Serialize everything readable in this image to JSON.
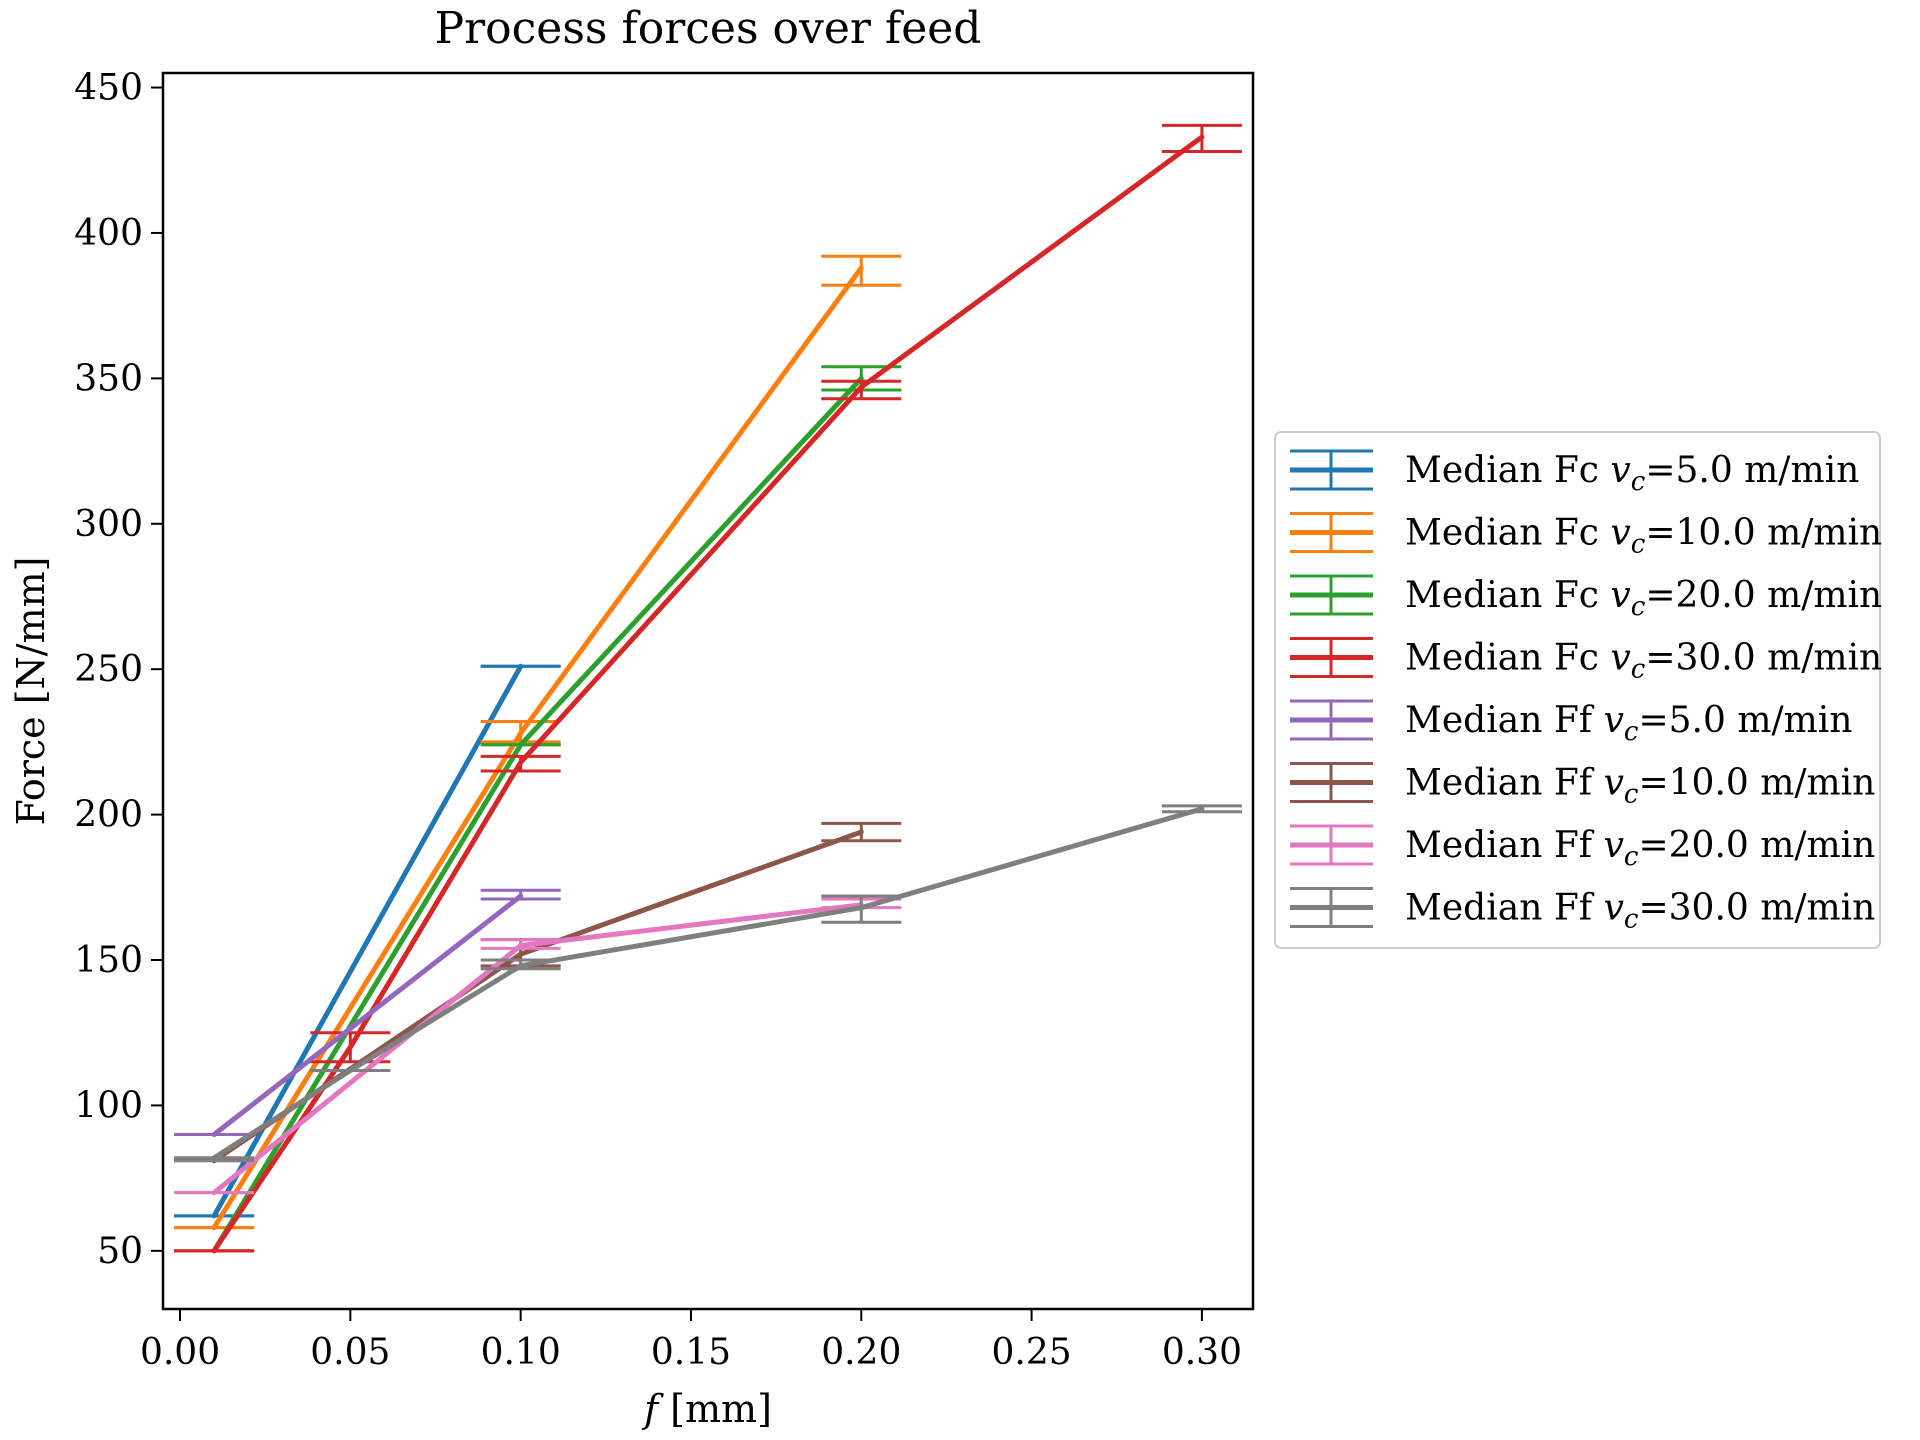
{
  "chart_data": {
    "type": "line",
    "title": "Process forces over feed",
    "xlabel_var": "f",
    "xlabel_unit": "[mm]",
    "ylabel": "Force [N/mm]",
    "xlim": [
      -0.005,
      0.315
    ],
    "ylim": [
      30,
      455
    ],
    "x_ticks": [
      0.0,
      0.05,
      0.1,
      0.15,
      0.2,
      0.25,
      0.3
    ],
    "x_tick_labels": [
      "0.00",
      "0.05",
      "0.10",
      "0.15",
      "0.20",
      "0.25",
      "0.30"
    ],
    "y_ticks": [
      50,
      100,
      150,
      200,
      250,
      300,
      350,
      400,
      450
    ],
    "y_tick_labels": [
      "50",
      "100",
      "150",
      "200",
      "250",
      "300",
      "350",
      "400",
      "450"
    ],
    "grid": false,
    "legend_position": "outside-right",
    "series": [
      {
        "name": "Median Fc",
        "speed": "5.0",
        "color": "#1f77b4",
        "x": [
          0.01,
          0.1
        ],
        "y": [
          62,
          251
        ],
        "err_low": [
          62,
          251
        ],
        "err_high": [
          62,
          251
        ]
      },
      {
        "name": "Median Fc",
        "speed": "10.0",
        "color": "#ff7f0e",
        "x": [
          0.01,
          0.1,
          0.2
        ],
        "y": [
          58,
          228,
          388
        ],
        "err_low": [
          58,
          225,
          382
        ],
        "err_high": [
          58,
          232,
          392
        ]
      },
      {
        "name": "Median Fc",
        "speed": "20.0",
        "color": "#2ca02c",
        "x": [
          0.01,
          0.1,
          0.2
        ],
        "y": [
          50,
          224,
          350
        ],
        "err_low": [
          50,
          224,
          346
        ],
        "err_high": [
          50,
          224,
          354
        ]
      },
      {
        "name": "Median Fc",
        "speed": "30.0",
        "color": "#d62728",
        "x": [
          0.01,
          0.05,
          0.1,
          0.2,
          0.3
        ],
        "y": [
          50,
          120,
          218,
          347,
          433
        ],
        "err_low": [
          50,
          115,
          215,
          343,
          428
        ],
        "err_high": [
          50,
          125,
          220,
          349,
          437
        ]
      },
      {
        "name": "Median Ff",
        "speed": "5.0",
        "color": "#9467bd",
        "x": [
          0.01,
          0.1
        ],
        "y": [
          90,
          172
        ],
        "err_low": [
          90,
          171
        ],
        "err_high": [
          90,
          174
        ]
      },
      {
        "name": "Median Ff",
        "speed": "10.0",
        "color": "#8c564b",
        "x": [
          0.01,
          0.1,
          0.2
        ],
        "y": [
          81,
          152,
          194
        ],
        "err_low": [
          81,
          148,
          191
        ],
        "err_high": [
          81,
          157,
          197
        ]
      },
      {
        "name": "Median Ff",
        "speed": "20.0",
        "color": "#e377c2",
        "x": [
          0.01,
          0.1,
          0.2
        ],
        "y": [
          70,
          155,
          169
        ],
        "err_low": [
          70,
          154,
          168
        ],
        "err_high": [
          70,
          157,
          171
        ]
      },
      {
        "name": "Median Ff",
        "speed": "30.0",
        "color": "#7f7f7f",
        "x": [
          0.01,
          0.05,
          0.1,
          0.2,
          0.3
        ],
        "y": [
          82,
          112,
          148,
          168,
          202
        ],
        "err_low": [
          81,
          112,
          147,
          163,
          201
        ],
        "err_high": [
          82,
          112,
          150,
          172,
          203
        ]
      }
    ]
  }
}
